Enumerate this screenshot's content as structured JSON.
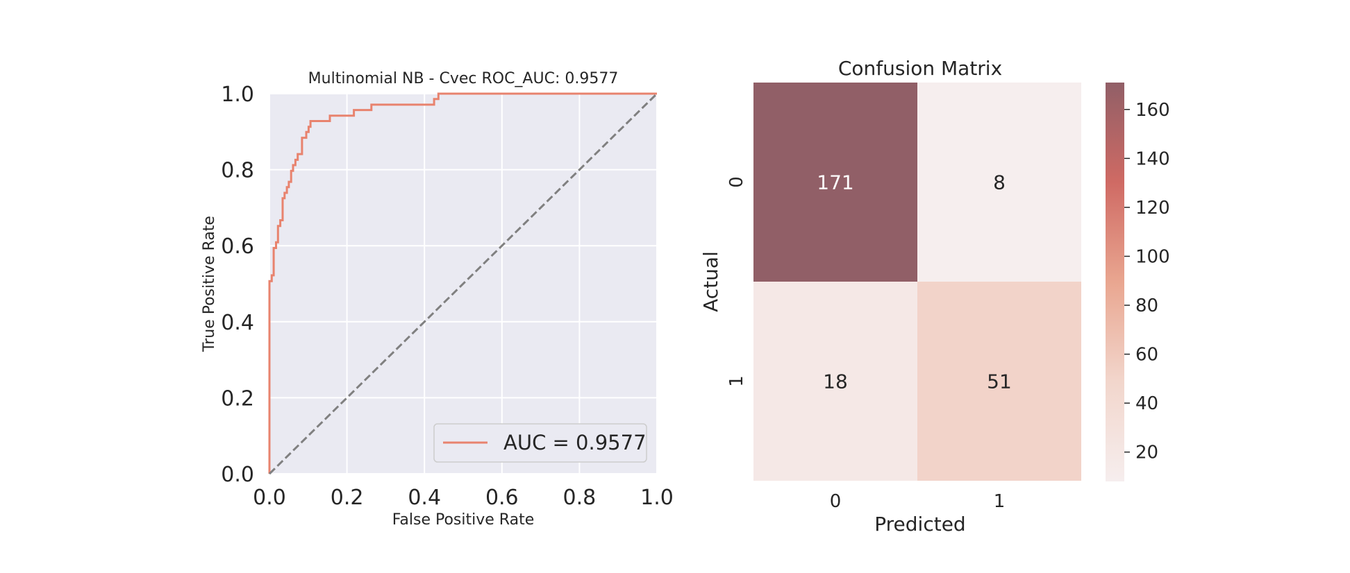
{
  "chart_data": [
    {
      "type": "line",
      "title": "Multinomial NB - Cvec ROC_AUC: 0.9577",
      "xlabel": "False Positive Rate",
      "ylabel": "True Positive Rate",
      "xlim": [
        0.0,
        1.0
      ],
      "ylim": [
        0.0,
        1.0
      ],
      "xticks": [
        "0.0",
        "0.2",
        "0.4",
        "0.6",
        "0.8",
        "1.0"
      ],
      "yticks": [
        "0.0",
        "0.2",
        "0.4",
        "0.6",
        "0.8",
        "1.0"
      ],
      "grid": true,
      "legend_position": "lower-right",
      "series": [
        {
          "name": "AUC = 0.9577",
          "color": "#e8836e",
          "x": [
            0.0,
            0.0,
            0.006,
            0.006,
            0.011,
            0.011,
            0.017,
            0.017,
            0.022,
            0.022,
            0.028,
            0.028,
            0.034,
            0.034,
            0.039,
            0.039,
            0.045,
            0.045,
            0.05,
            0.05,
            0.056,
            0.056,
            0.061,
            0.061,
            0.067,
            0.067,
            0.073,
            0.073,
            0.084,
            0.084,
            0.095,
            0.095,
            0.101,
            0.101,
            0.106,
            0.106,
            0.112,
            0.112,
            0.123,
            0.123,
            0.156,
            0.156,
            0.218,
            0.218,
            0.263,
            0.263,
            0.425,
            0.425,
            0.436,
            0.436,
            0.44,
            1.0
          ],
          "y": [
            0.0,
            0.507,
            0.507,
            0.522,
            0.522,
            0.594,
            0.594,
            0.609,
            0.609,
            0.652,
            0.652,
            0.667,
            0.667,
            0.725,
            0.725,
            0.739,
            0.739,
            0.754,
            0.754,
            0.768,
            0.768,
            0.797,
            0.797,
            0.812,
            0.812,
            0.826,
            0.826,
            0.841,
            0.841,
            0.884,
            0.884,
            0.899,
            0.899,
            0.913,
            0.913,
            0.928,
            0.928,
            0.928,
            0.928,
            0.928,
            0.928,
            0.942,
            0.942,
            0.957,
            0.957,
            0.971,
            0.971,
            0.986,
            0.986,
            1.0,
            1.0,
            1.0
          ]
        },
        {
          "name": "",
          "style": "dashed",
          "color": "#808080",
          "x": [
            0.0,
            1.0
          ],
          "y": [
            0.0,
            1.0
          ]
        }
      ]
    },
    {
      "type": "heatmap",
      "title": "Confusion Matrix",
      "xlabel": "Predicted",
      "ylabel": "Actual",
      "x_categories": [
        "0",
        "1"
      ],
      "y_categories": [
        "0",
        "1"
      ],
      "values": [
        [
          171,
          8
        ],
        [
          18,
          51
        ]
      ],
      "colorbar": {
        "min": 8,
        "max": 171,
        "ticks": [
          20,
          40,
          60,
          80,
          100,
          120,
          140,
          160
        ],
        "tick_labels": [
          "20",
          "40",
          "60",
          "80",
          "100",
          "120",
          "140",
          "160"
        ],
        "colormap": "Reds (alpha 0.6)"
      }
    }
  ]
}
